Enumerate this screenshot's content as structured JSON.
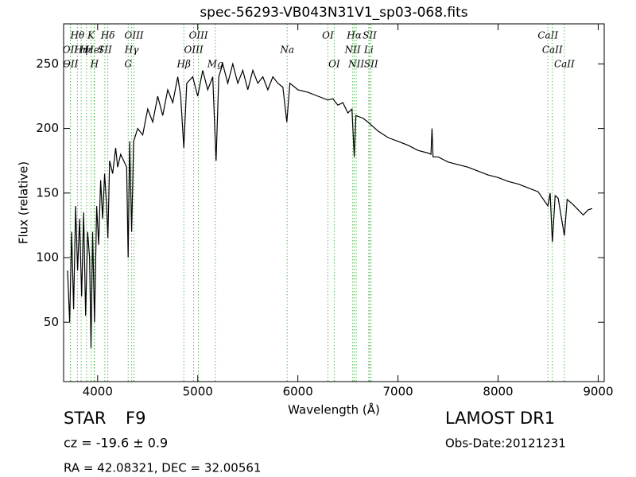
{
  "chart_data": {
    "type": "line",
    "title": "spec-56293-VB043N31V1_sp03-068.fits",
    "xlabel": "Wavelength (Å)",
    "ylabel": "Flux (relative)",
    "xlim": [
      3660,
      9060
    ],
    "ylim": [
      4,
      281
    ],
    "xticks": [
      4000,
      5000,
      6000,
      7000,
      8000,
      9000
    ],
    "yticks": [
      50,
      100,
      150,
      200,
      250
    ],
    "line_color": "#000000",
    "marker_color": "#55bb55",
    "x": [
      3700,
      3720,
      3740,
      3760,
      3780,
      3800,
      3820,
      3840,
      3860,
      3880,
      3900,
      3920,
      3934,
      3950,
      3969,
      3990,
      4010,
      4030,
      4050,
      4070,
      4090,
      4102,
      4120,
      4150,
      4180,
      4200,
      4230,
      4260,
      4290,
      4305,
      4320,
      4340,
      4360,
      4400,
      4450,
      4500,
      4550,
      4600,
      4650,
      4700,
      4750,
      4800,
      4830,
      4861,
      4890,
      4950,
      5000,
      5050,
      5100,
      5150,
      5175,
      5183,
      5210,
      5250,
      5300,
      5350,
      5400,
      5450,
      5500,
      5550,
      5600,
      5650,
      5700,
      5750,
      5800,
      5850,
      5890,
      5920,
      6000,
      6100,
      6200,
      6300,
      6350,
      6400,
      6450,
      6500,
      6540,
      6563,
      6580,
      6650,
      6700,
      6800,
      6900,
      7000,
      7100,
      7200,
      7300,
      7330,
      7340,
      7350,
      7400,
      7500,
      7600,
      7700,
      7800,
      7900,
      8000,
      8100,
      8200,
      8300,
      8400,
      8498,
      8520,
      8542,
      8570,
      8600,
      8662,
      8690,
      8750,
      8800,
      8850,
      8900,
      8940
    ],
    "values": [
      90,
      50,
      120,
      60,
      140,
      90,
      130,
      70,
      135,
      55,
      120,
      100,
      30,
      120,
      50,
      140,
      110,
      160,
      130,
      165,
      140,
      115,
      175,
      165,
      185,
      170,
      180,
      175,
      170,
      100,
      190,
      120,
      190,
      200,
      195,
      215,
      205,
      225,
      210,
      230,
      220,
      240,
      225,
      185,
      235,
      240,
      225,
      245,
      230,
      240,
      190,
      175,
      240,
      250,
      235,
      250,
      235,
      245,
      230,
      245,
      235,
      240,
      230,
      240,
      235,
      232,
      205,
      235,
      230,
      228,
      225,
      222,
      223,
      218,
      220,
      212,
      215,
      178,
      210,
      208,
      205,
      198,
      193,
      190,
      187,
      183,
      181,
      180,
      200,
      178,
      178,
      174,
      172,
      170,
      167,
      164,
      162,
      159,
      157,
      154,
      151,
      140,
      150,
      112,
      148,
      146,
      117,
      145,
      141,
      137,
      133,
      137,
      138
    ],
    "spectral_lines": [
      [
        {
          "label": "Hθ",
          "wavelength": 3798
        },
        {
          "label": "K",
          "wavelength": 3934
        },
        {
          "label": "Hδ",
          "wavelength": 4102
        },
        {
          "label": "OIII",
          "wavelength": 4363
        },
        {
          "label": "OIII",
          "wavelength": 5007
        },
        {
          "label": "OI",
          "wavelength": 6300
        },
        {
          "label": "Hα",
          "wavelength": 6563
        },
        {
          "label": "SII",
          "wavelength": 6717
        },
        {
          "label": "CaII",
          "wavelength": 8498
        }
      ],
      [
        {
          "label": "OII",
          "wavelength": 3727
        },
        {
          "label": "Hη",
          "wavelength": 3835
        },
        {
          "label": "Hε",
          "wavelength": 3889
        },
        {
          "label": "HeI",
          "wavelength": 3965
        },
        {
          "label": "SII",
          "wavelength": 4072
        },
        {
          "label": "Hγ",
          "wavelength": 4340
        },
        {
          "label": "OIII",
          "wavelength": 4959
        },
        {
          "label": "Na",
          "wavelength": 5893
        },
        {
          "label": "NII",
          "wavelength": 6548
        },
        {
          "label": "Li",
          "wavelength": 6708
        },
        {
          "label": "CaII",
          "wavelength": 8542
        }
      ],
      [
        {
          "label": "OII",
          "wavelength": 3729
        },
        {
          "label": "H",
          "wavelength": 3969
        },
        {
          "label": "G",
          "wavelength": 4305
        },
        {
          "label": "Hβ",
          "wavelength": 4861
        },
        {
          "label": "Mg",
          "wavelength": 5175
        },
        {
          "label": "OI",
          "wavelength": 6363
        },
        {
          "label": "NII",
          "wavelength": 6583
        },
        {
          "label": "SII",
          "wavelength": 6731
        },
        {
          "label": "CaII",
          "wavelength": 8662
        }
      ]
    ]
  },
  "info": {
    "class": "STAR",
    "subclass": "F9",
    "cz": "cz = -19.6 ± 0.9",
    "survey": "LAMOST DR1",
    "obs_date": "Obs-Date:20121231",
    "coords": "RA = 42.08321, DEC = 32.00561"
  }
}
